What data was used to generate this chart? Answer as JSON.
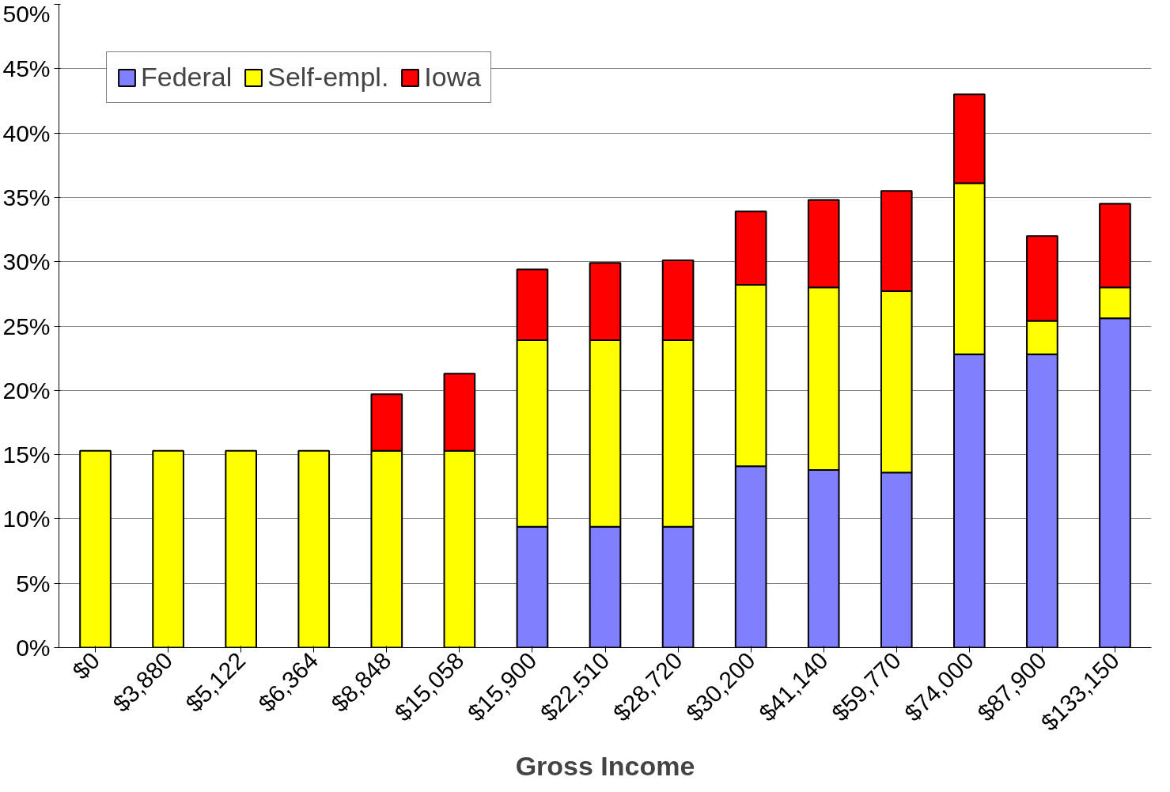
{
  "chart_data": {
    "type": "bar",
    "stacked": true,
    "xlabel": "Gross Income",
    "categories": [
      "$0",
      "$3,880",
      "$5,122",
      "$6,364",
      "$8,848",
      "$15,058",
      "$15,900",
      "$22,510",
      "$28,720",
      "$30,200",
      "$41,140",
      "$59,770",
      "$74,000",
      "$87,900",
      "$133,150"
    ],
    "series": [
      {
        "name": "Federal",
        "color": "#8080ff",
        "values": [
          null,
          null,
          null,
          null,
          null,
          null,
          9.4,
          9.4,
          9.4,
          14.1,
          13.8,
          13.6,
          22.8,
          22.8,
          25.6
        ]
      },
      {
        "name": "Self-empl.",
        "color": "#ffff00",
        "values": [
          15.3,
          15.3,
          15.3,
          15.3,
          15.3,
          15.3,
          14.5,
          14.5,
          14.5,
          14.1,
          14.2,
          14.1,
          13.3,
          2.6,
          2.4
        ]
      },
      {
        "name": "Iowa",
        "color": "#ff0000",
        "values": [
          null,
          null,
          null,
          null,
          4.4,
          6.0,
          5.5,
          6.0,
          6.2,
          5.7,
          6.8,
          7.8,
          6.9,
          6.6,
          6.5
        ]
      }
    ],
    "ylim": [
      0,
      50
    ],
    "yticks": [
      {
        "value": 0,
        "label": "0%"
      },
      {
        "value": 5,
        "label": "5%"
      },
      {
        "value": 10,
        "label": "10%"
      },
      {
        "value": 15,
        "label": "15%"
      },
      {
        "value": 20,
        "label": "20%"
      },
      {
        "value": 25,
        "label": "25%"
      },
      {
        "value": 30,
        "label": "30%"
      },
      {
        "value": 35,
        "label": "35%"
      },
      {
        "value": 40,
        "label": "40%"
      },
      {
        "value": 45,
        "label": "45%"
      },
      {
        "value": 50,
        "label": "50%"
      }
    ],
    "grid": "y",
    "legend": "top left"
  }
}
